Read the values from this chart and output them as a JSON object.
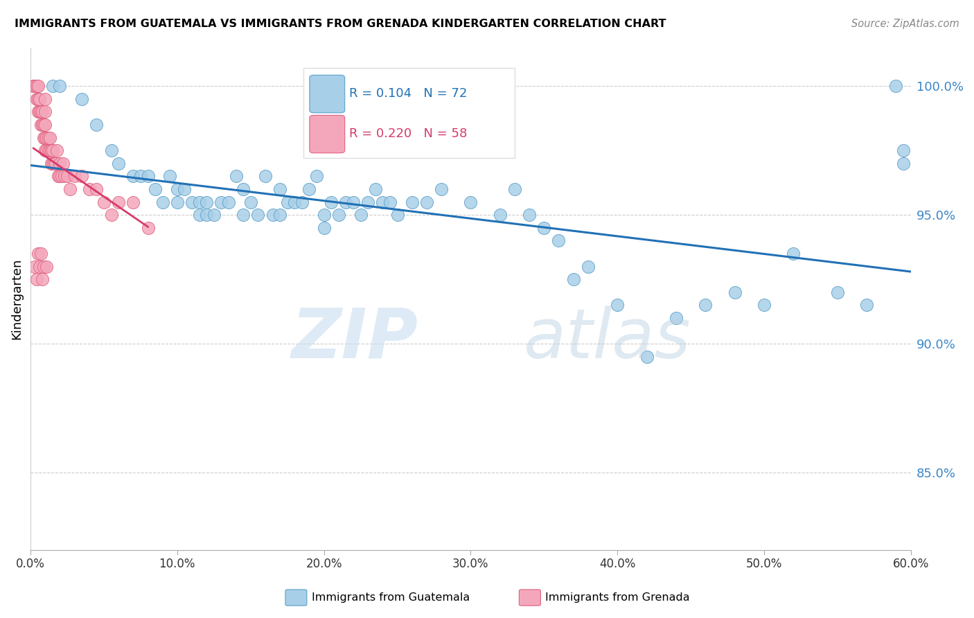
{
  "title": "IMMIGRANTS FROM GUATEMALA VS IMMIGRANTS FROM GRENADA KINDERGARTEN CORRELATION CHART",
  "source": "Source: ZipAtlas.com",
  "ylabel": "Kindergarten",
  "x_min": 0.0,
  "x_max": 60.0,
  "y_min": 82.0,
  "y_max": 101.5,
  "y_ticks": [
    85.0,
    90.0,
    95.0,
    100.0
  ],
  "x_ticks": [
    0.0,
    10.0,
    20.0,
    30.0,
    40.0,
    50.0,
    60.0
  ],
  "blue_color": "#a8cfe8",
  "pink_color": "#f4a7bb",
  "blue_edge_color": "#5b9ec9",
  "pink_edge_color": "#e0607e",
  "trend_blue_color": "#2171b5",
  "trend_pink_color": "#d63b6a",
  "legend_blue_R": "R = 0.104",
  "legend_blue_N": "N = 72",
  "legend_pink_R": "R = 0.220",
  "legend_pink_N": "N = 58",
  "blue_x": [
    1.5,
    2.0,
    3.5,
    4.5,
    5.5,
    6.0,
    7.0,
    7.5,
    8.0,
    8.5,
    9.0,
    9.5,
    10.0,
    10.0,
    10.5,
    11.0,
    11.5,
    11.5,
    12.0,
    12.0,
    12.5,
    13.0,
    13.5,
    14.0,
    14.5,
    14.5,
    15.0,
    15.5,
    16.0,
    16.5,
    17.0,
    17.0,
    17.5,
    18.0,
    18.5,
    19.0,
    19.5,
    20.0,
    20.0,
    20.5,
    21.0,
    21.5,
    22.0,
    22.5,
    23.0,
    23.5,
    24.0,
    24.5,
    25.0,
    26.0,
    27.0,
    28.0,
    30.0,
    32.0,
    33.0,
    34.0,
    35.0,
    36.0,
    37.0,
    38.0,
    40.0,
    42.0,
    44.0,
    46.0,
    48.0,
    50.0,
    52.0,
    55.0,
    57.0,
    59.5,
    59.5,
    59.0
  ],
  "blue_y": [
    100.0,
    100.0,
    99.5,
    98.5,
    97.5,
    97.0,
    96.5,
    96.5,
    96.5,
    96.0,
    95.5,
    96.5,
    96.0,
    95.5,
    96.0,
    95.5,
    95.5,
    95.0,
    95.5,
    95.0,
    95.0,
    95.5,
    95.5,
    96.5,
    95.0,
    96.0,
    95.5,
    95.0,
    96.5,
    95.0,
    96.0,
    95.0,
    95.5,
    95.5,
    95.5,
    96.0,
    96.5,
    95.0,
    94.5,
    95.5,
    95.0,
    95.5,
    95.5,
    95.0,
    95.5,
    96.0,
    95.5,
    95.5,
    95.0,
    95.5,
    95.5,
    96.0,
    95.5,
    95.0,
    96.0,
    95.0,
    94.5,
    94.0,
    92.5,
    93.0,
    91.5,
    89.5,
    91.0,
    91.5,
    92.0,
    91.5,
    93.5,
    92.0,
    91.5,
    97.0,
    97.5,
    100.0
  ],
  "pink_x": [
    0.2,
    0.3,
    0.4,
    0.4,
    0.5,
    0.5,
    0.5,
    0.6,
    0.6,
    0.7,
    0.7,
    0.8,
    0.8,
    0.9,
    0.9,
    1.0,
    1.0,
    1.0,
    1.0,
    1.0,
    1.1,
    1.1,
    1.2,
    1.2,
    1.3,
    1.3,
    1.4,
    1.4,
    1.5,
    1.5,
    1.6,
    1.7,
    1.8,
    1.9,
    2.0,
    2.0,
    2.1,
    2.2,
    2.3,
    2.5,
    2.7,
    3.0,
    3.5,
    4.0,
    4.5,
    5.0,
    5.5,
    6.0,
    7.0,
    8.0,
    0.3,
    0.4,
    0.5,
    0.6,
    0.7,
    0.8,
    0.9,
    1.1
  ],
  "pink_y": [
    100.0,
    100.0,
    100.0,
    99.5,
    99.0,
    99.5,
    100.0,
    99.0,
    99.5,
    99.0,
    98.5,
    98.5,
    99.0,
    98.5,
    98.0,
    98.0,
    97.5,
    98.5,
    99.0,
    99.5,
    98.0,
    97.5,
    97.5,
    98.0,
    97.5,
    98.0,
    97.0,
    97.5,
    97.0,
    97.5,
    97.0,
    97.0,
    97.5,
    96.5,
    97.0,
    96.5,
    96.5,
    97.0,
    96.5,
    96.5,
    96.0,
    96.5,
    96.5,
    96.0,
    96.0,
    95.5,
    95.0,
    95.5,
    95.5,
    94.5,
    93.0,
    92.5,
    93.5,
    93.0,
    93.5,
    92.5,
    93.0,
    93.0
  ],
  "pink_trend_x": [
    0.2,
    8.0
  ],
  "blue_trend_x": [
    0.0,
    60.0
  ]
}
